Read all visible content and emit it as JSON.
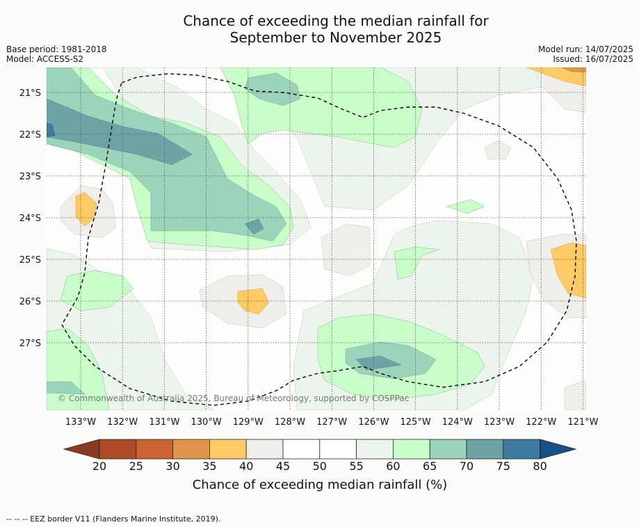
{
  "title": {
    "line1": "Chance of exceeding the median rainfall for",
    "line2": "September to November 2025"
  },
  "meta_left": {
    "base_period": "Base period: 1981-2018",
    "model": "Model: ACCESS-S2"
  },
  "meta_right": {
    "model_run": "Model run: 14/07/2025",
    "issued": "Issued: 16/07/2025"
  },
  "map": {
    "lon_labels": [
      "133°W",
      "132°W",
      "131°W",
      "130°W",
      "129°W",
      "128°W",
      "127°W",
      "126°W",
      "125°W",
      "124°W",
      "123°W",
      "122°W",
      "121°W"
    ],
    "lat_labels": [
      "21°S",
      "22°S",
      "23°S",
      "24°S",
      "25°S",
      "26°S",
      "27°S"
    ],
    "copyright": "© Commonwealth of Australia 2025, Bureau of Meteorology, supported by COSPPac"
  },
  "colorbar": {
    "ticks": [
      "20",
      "25",
      "30",
      "35",
      "40",
      "45",
      "50",
      "55",
      "60",
      "65",
      "70",
      "75",
      "80"
    ],
    "colors": [
      "#b04a26",
      "#cd6332",
      "#e0944a",
      "#fdca66",
      "#f0eeea",
      "#ffffff",
      "#ffffff",
      "#ecf5ec",
      "#c9fdc9",
      "#9cd4bb",
      "#6ca4a5",
      "#3f7ba0"
    ],
    "under_color": "#8a3a22",
    "over_color": "#17508a",
    "title": "Chance of exceeding median rainfall (%)"
  },
  "footer": {
    "legend": "--  --  -- EEZ border V11 (Flanders Marine Institute, 2019)."
  }
}
